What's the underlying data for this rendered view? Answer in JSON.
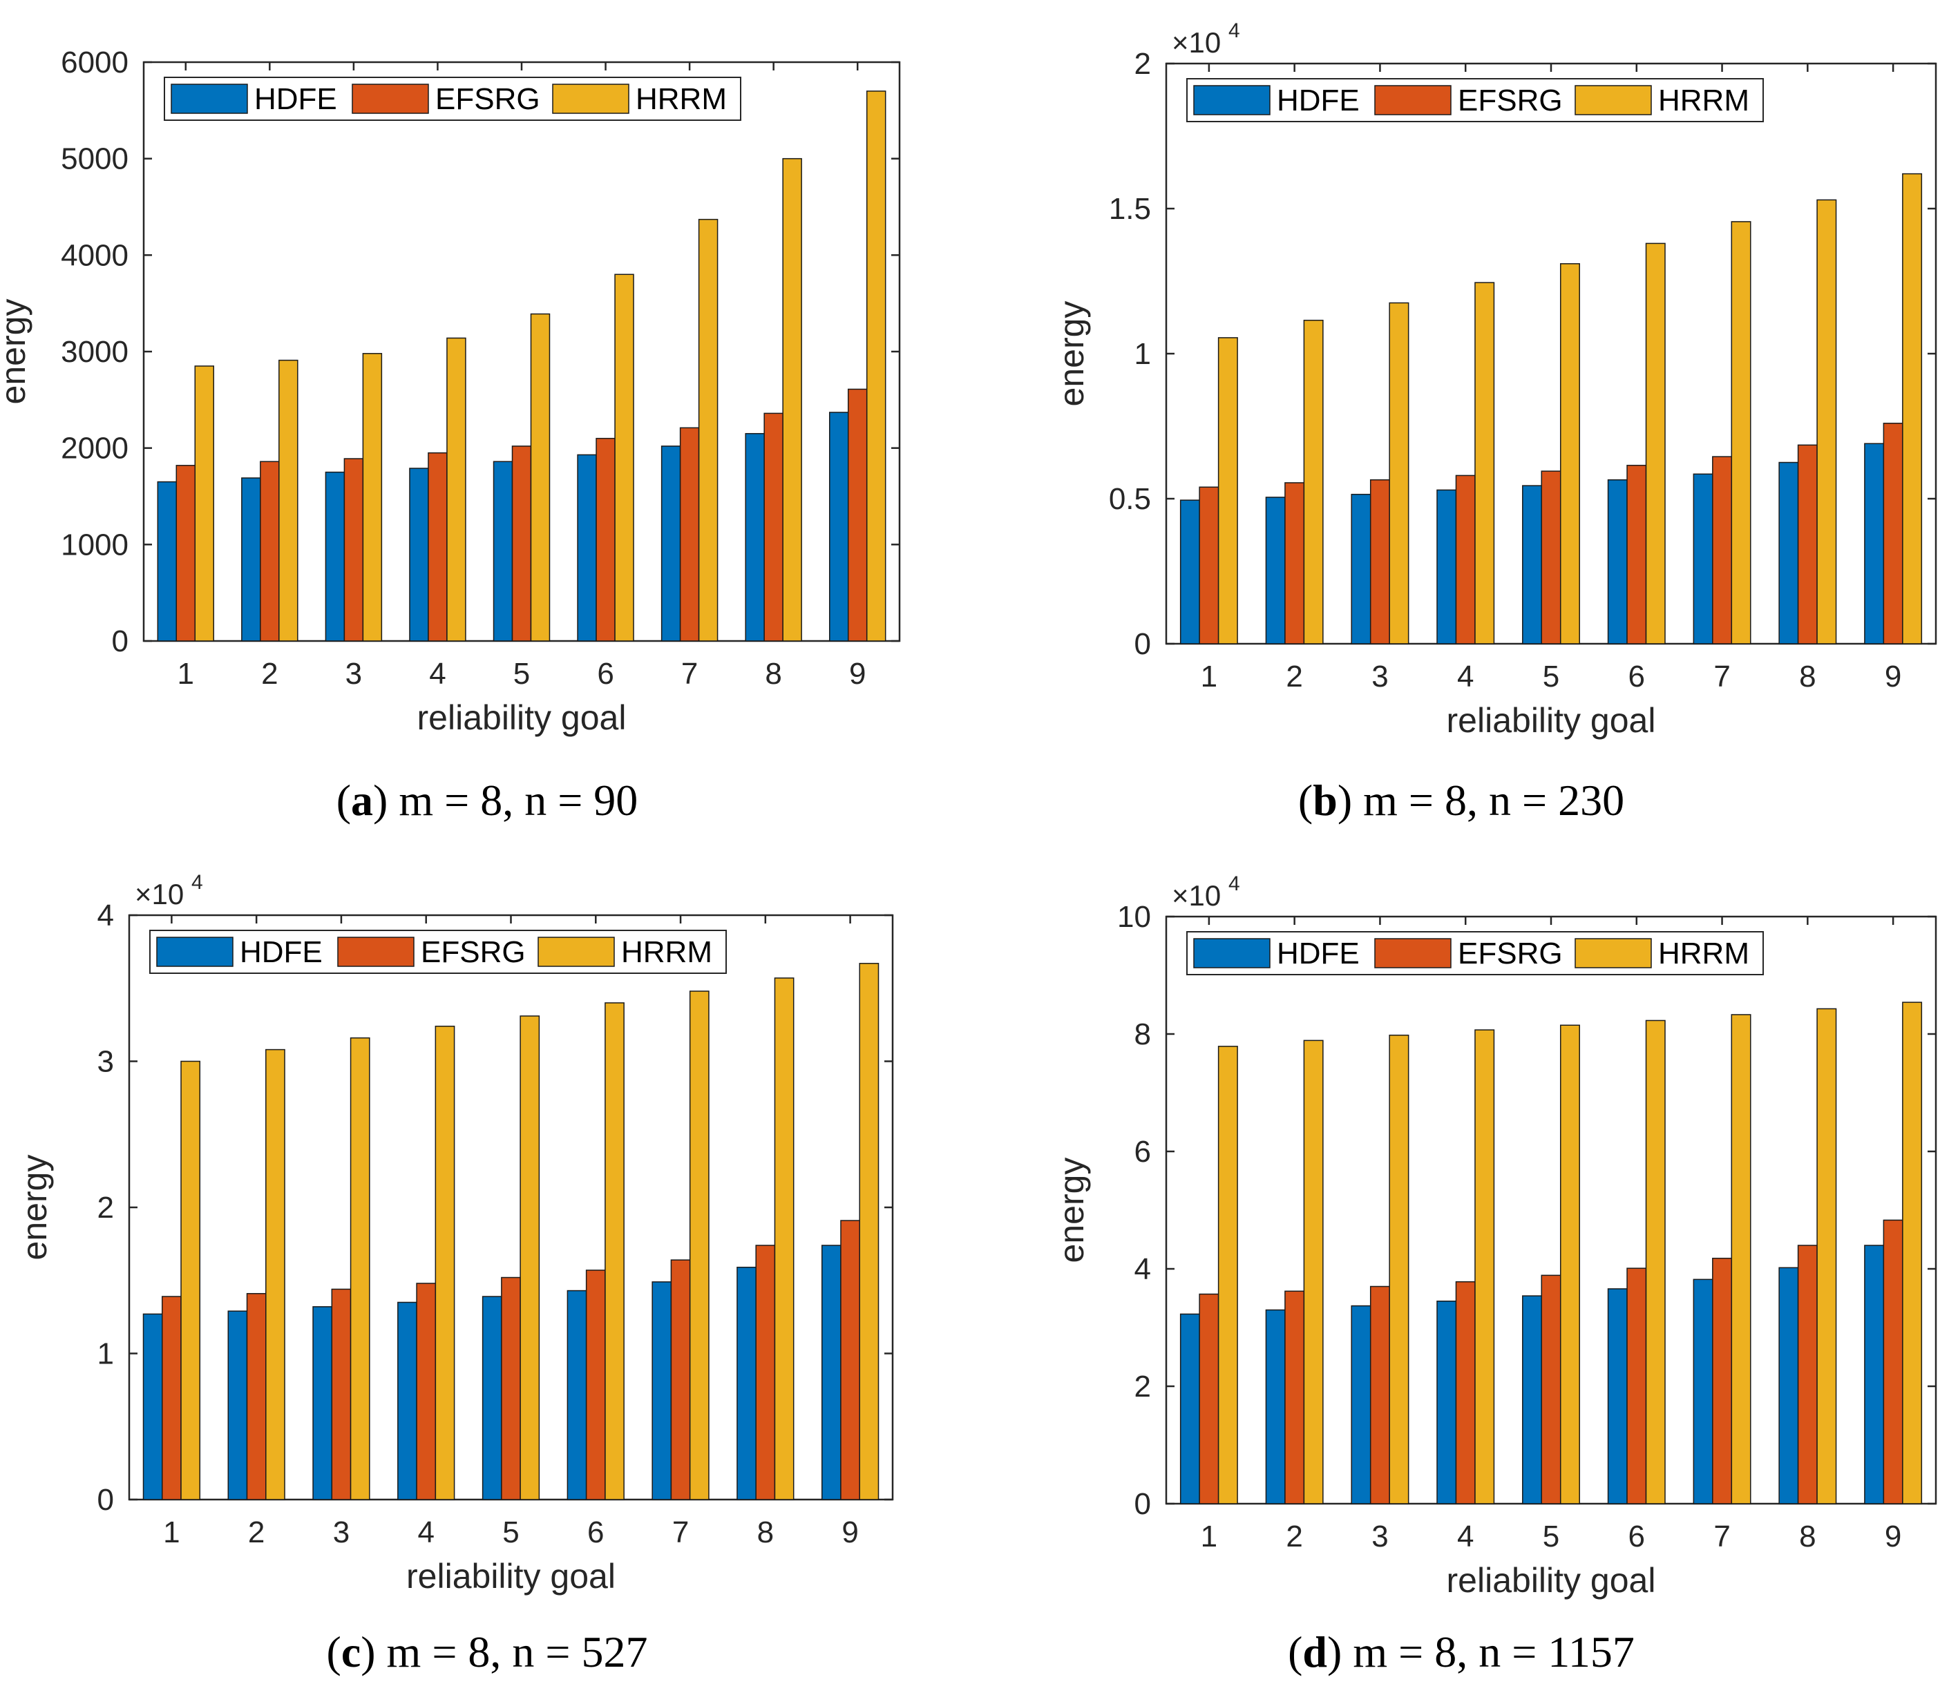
{
  "series_names": [
    "HDFE",
    "EFSRG",
    "HRRM"
  ],
  "colors": {
    "HDFE": "#0072BD",
    "EFSRG": "#D95319",
    "HRRM": "#EDB120"
  },
  "chart_data": [
    {
      "id": "a",
      "type": "bar",
      "xlabel": "reliability goal",
      "ylabel": "energy",
      "categories": [
        "1",
        "2",
        "3",
        "4",
        "5",
        "6",
        "7",
        "8",
        "9"
      ],
      "ylim": [
        0,
        6000
      ],
      "yticks": [
        0,
        1000,
        2000,
        3000,
        4000,
        5000,
        6000
      ],
      "ytick_labels": [
        "0",
        "1000",
        "2000",
        "3000",
        "4000",
        "5000",
        "6000"
      ],
      "exponent_label": "",
      "legend_position": "top-left",
      "series": [
        {
          "name": "HDFE",
          "values": [
            1650,
            1690,
            1750,
            1790,
            1860,
            1930,
            2020,
            2150,
            2370
          ]
        },
        {
          "name": "EFSRG",
          "values": [
            1820,
            1860,
            1890,
            1950,
            2020,
            2100,
            2210,
            2360,
            2610
          ]
        },
        {
          "name": "HRRM",
          "values": [
            2850,
            2910,
            2980,
            3140,
            3390,
            3800,
            4370,
            5000,
            5700
          ]
        }
      ],
      "caption": {
        "letter": "a",
        "text": " m = 8, n = 90"
      }
    },
    {
      "id": "b",
      "type": "bar",
      "xlabel": "reliability goal",
      "ylabel": "energy",
      "categories": [
        "1",
        "2",
        "3",
        "4",
        "5",
        "6",
        "7",
        "8",
        "9"
      ],
      "ylim": [
        0,
        20000
      ],
      "yticks": [
        0,
        5000,
        10000,
        15000,
        20000
      ],
      "ytick_labels": [
        "0",
        "0.5",
        "1",
        "1.5",
        "2"
      ],
      "exponent_label": "×10",
      "exponent_power": "4",
      "legend_position": "top-left",
      "series": [
        {
          "name": "HDFE",
          "values": [
            4950,
            5050,
            5150,
            5300,
            5450,
            5650,
            5850,
            6250,
            6900
          ]
        },
        {
          "name": "EFSRG",
          "values": [
            5400,
            5550,
            5650,
            5800,
            5950,
            6150,
            6450,
            6850,
            7600
          ]
        },
        {
          "name": "HRRM",
          "values": [
            10550,
            11150,
            11750,
            12450,
            13100,
            13800,
            14550,
            15300,
            16200
          ]
        }
      ],
      "caption": {
        "letter": "b",
        "text": " m = 8, n = 230"
      }
    },
    {
      "id": "c",
      "type": "bar",
      "xlabel": "reliability goal",
      "ylabel": "energy",
      "categories": [
        "1",
        "2",
        "3",
        "4",
        "5",
        "6",
        "7",
        "8",
        "9"
      ],
      "ylim": [
        0,
        40000
      ],
      "yticks": [
        0,
        10000,
        20000,
        30000,
        40000
      ],
      "ytick_labels": [
        "0",
        "1",
        "2",
        "3",
        "4"
      ],
      "exponent_label": "×10",
      "exponent_power": "4",
      "legend_position": "top-left",
      "series": [
        {
          "name": "HDFE",
          "values": [
            12700,
            12900,
            13200,
            13500,
            13900,
            14300,
            14900,
            15900,
            17400
          ]
        },
        {
          "name": "EFSRG",
          "values": [
            13900,
            14100,
            14400,
            14800,
            15200,
            15700,
            16400,
            17400,
            19100
          ]
        },
        {
          "name": "HRRM",
          "values": [
            30000,
            30800,
            31600,
            32400,
            33100,
            34000,
            34800,
            35700,
            36700
          ]
        }
      ],
      "caption": {
        "letter": "c",
        "text": " m = 8, n = 527"
      }
    },
    {
      "id": "d",
      "type": "bar",
      "xlabel": "reliability goal",
      "ylabel": "energy",
      "categories": [
        "1",
        "2",
        "3",
        "4",
        "5",
        "6",
        "7",
        "8",
        "9"
      ],
      "ylim": [
        0,
        100000
      ],
      "yticks": [
        0,
        20000,
        40000,
        60000,
        80000,
        100000
      ],
      "ytick_labels": [
        "0",
        "2",
        "4",
        "6",
        "8",
        "10"
      ],
      "exponent_label": "×10",
      "exponent_power": "4",
      "legend_position": "top-left",
      "series": [
        {
          "name": "HDFE",
          "values": [
            32300,
            33000,
            33700,
            34500,
            35400,
            36600,
            38200,
            40200,
            44000
          ]
        },
        {
          "name": "EFSRG",
          "values": [
            35700,
            36200,
            37000,
            37800,
            38900,
            40100,
            41800,
            44000,
            48300
          ]
        },
        {
          "name": "HRRM",
          "values": [
            77900,
            78900,
            79800,
            80700,
            81500,
            82300,
            83300,
            84300,
            85400
          ]
        }
      ],
      "caption": {
        "letter": "d",
        "text": " m = 8, n = 1157"
      }
    }
  ]
}
